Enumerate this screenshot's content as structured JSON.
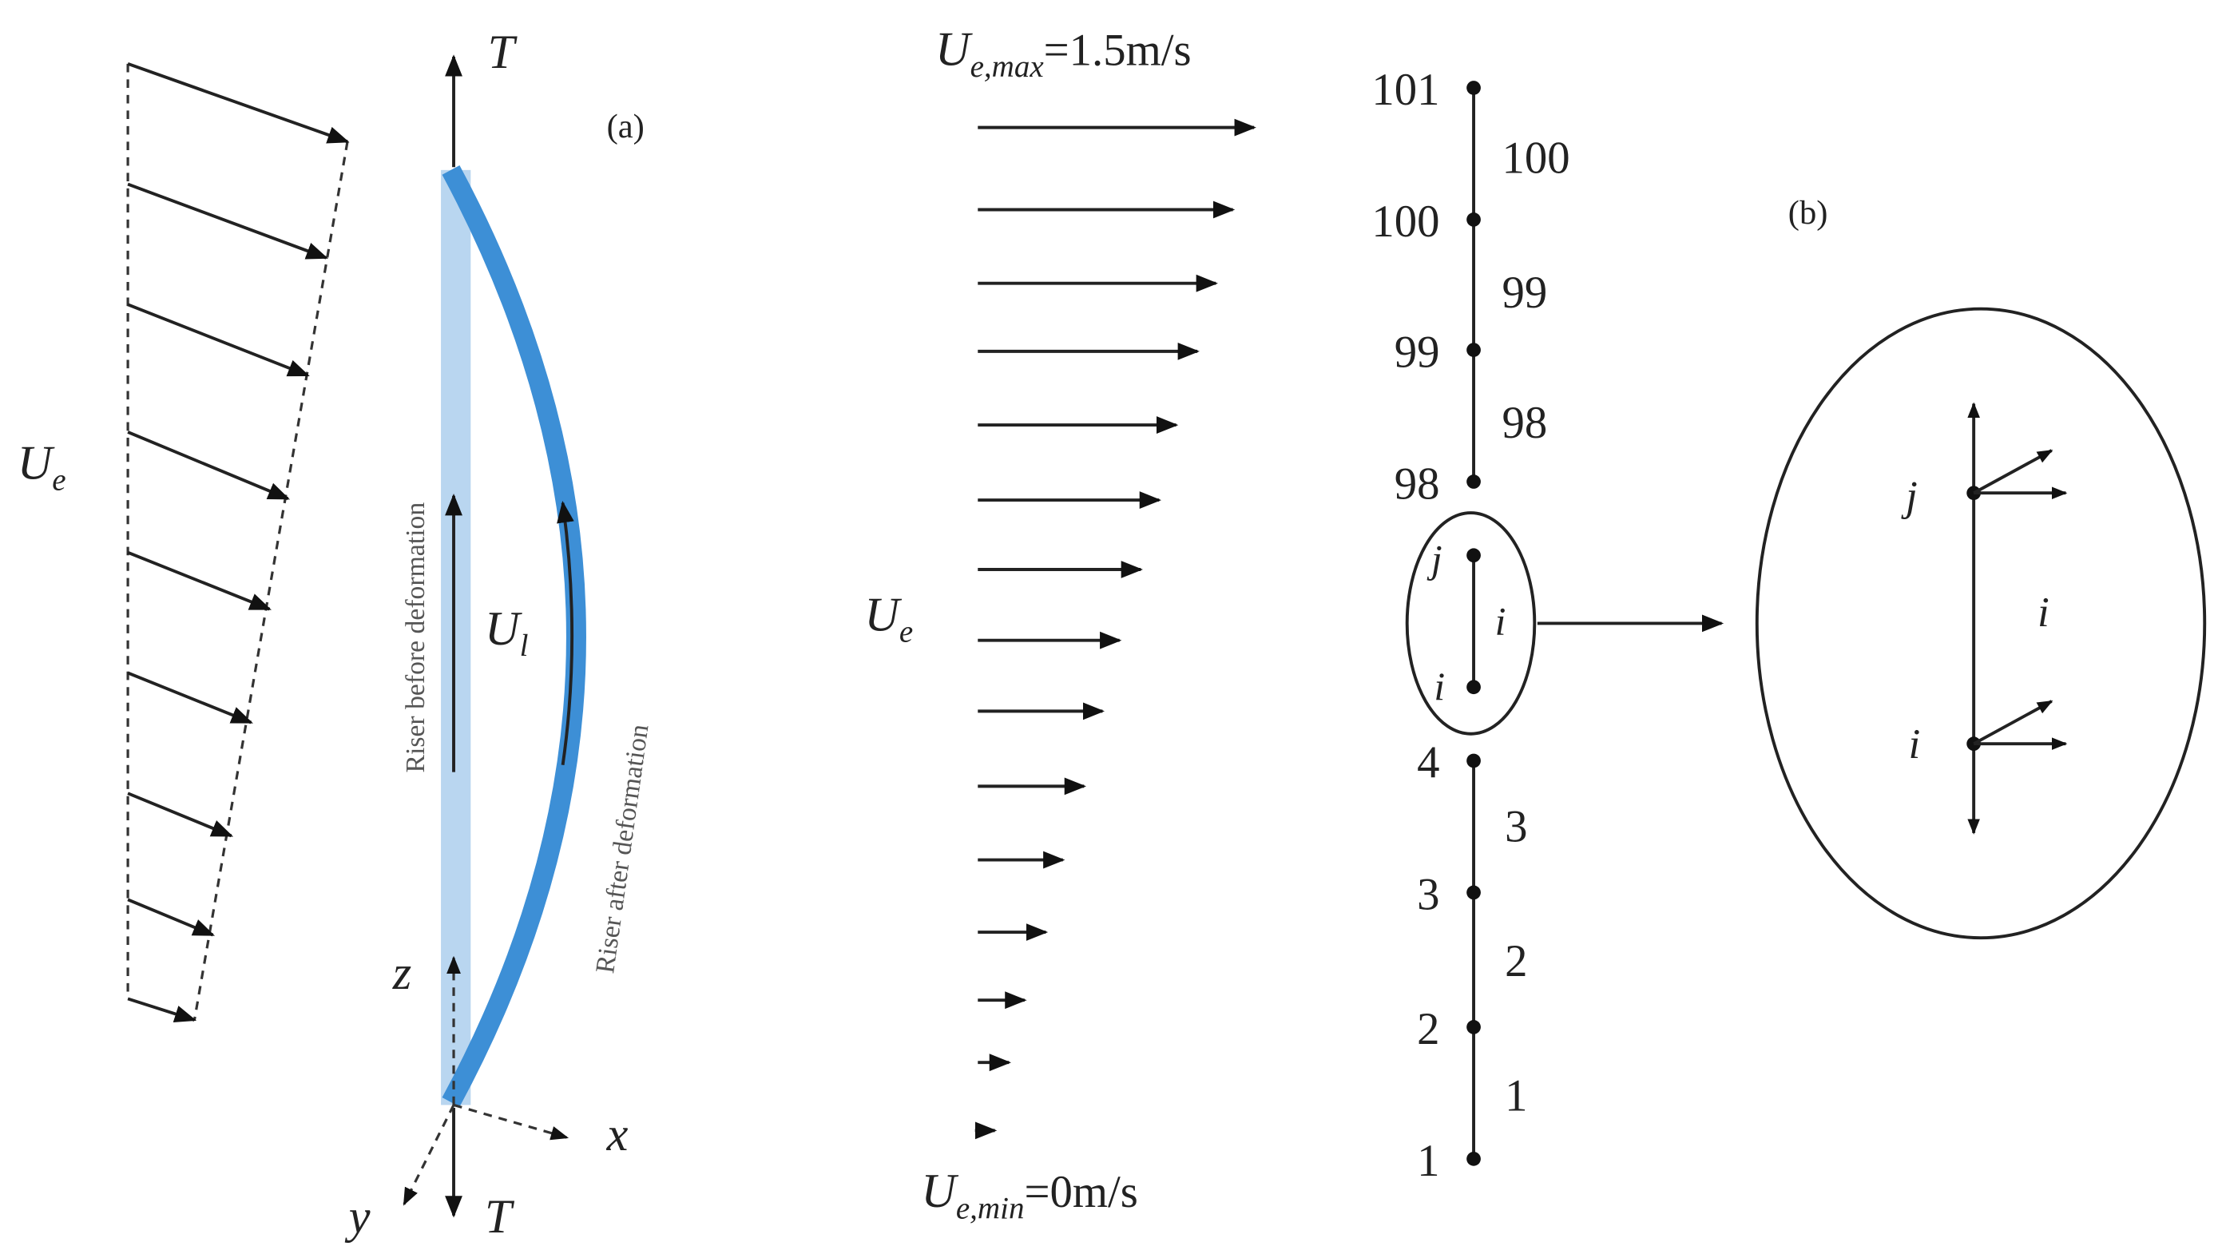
{
  "panel_a": {
    "label": "(a)",
    "tension_top": "T",
    "tension_bottom": "T",
    "current_label": {
      "symbol": "U",
      "subscript": "e"
    },
    "internal_flow_label": {
      "symbol": "U",
      "subscript": "l"
    },
    "riser_before": "Riser before deformation",
    "riser_after": "Riser after deformation",
    "axes": {
      "z": "z",
      "x": "x",
      "y": "y"
    }
  },
  "panel_b": {
    "label": "(b)",
    "current_max": {
      "symbol": "U",
      "subscript": "e,max",
      "value": "=1.5m/s"
    },
    "current_min": {
      "symbol": "U",
      "subscript": "e,min",
      "value": "=0m/s"
    },
    "current_label": {
      "symbol": "U",
      "subscript": "e"
    },
    "nodes": [
      101,
      100,
      99,
      98,
      4,
      3,
      2,
      1
    ],
    "elements": [
      100,
      99,
      98,
      3,
      2,
      1
    ],
    "zoom_element": {
      "node_j": "j",
      "element": "i",
      "node_i": "i"
    },
    "detail": {
      "node_j": "j",
      "element": "i",
      "node_i": "i"
    }
  }
}
